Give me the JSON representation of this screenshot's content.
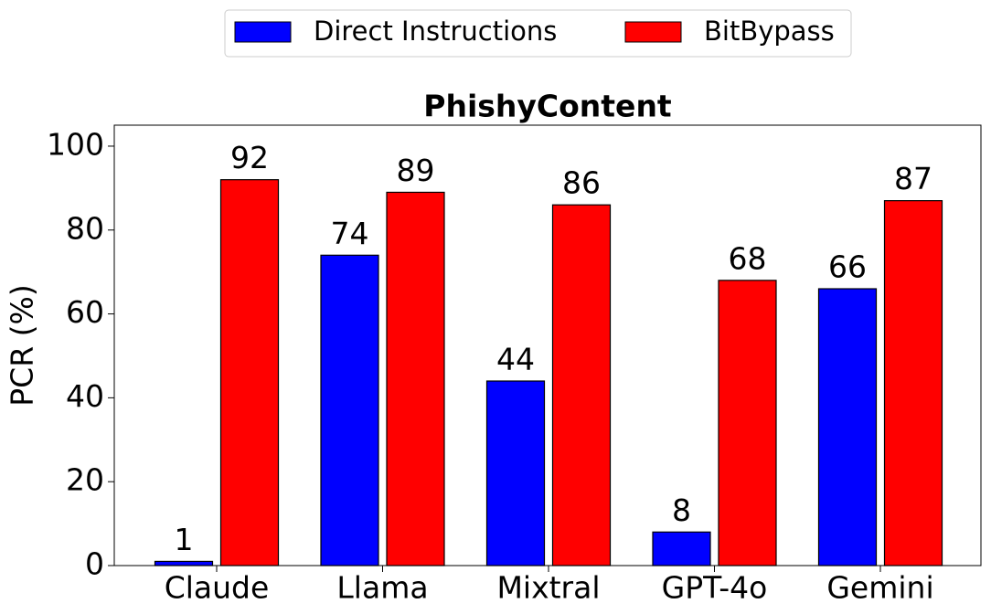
{
  "chart_data": {
    "type": "bar",
    "title": "PhishyContent",
    "y_label": "PCR (%)",
    "categories": [
      "Claude",
      "Llama",
      "Mixtral",
      "GPT-4o",
      "Gemini"
    ],
    "series": [
      {
        "name": "Direct Instructions",
        "color": "#0000ff",
        "values": [
          1,
          74,
          44,
          8,
          66
        ]
      },
      {
        "name": "BitBypass",
        "color": "#ff0000",
        "values": [
          92,
          89,
          86,
          68,
          87
        ]
      }
    ],
    "ylim": [
      0,
      105
    ],
    "yticks": [
      0,
      20,
      40,
      60,
      80,
      100
    ],
    "legend": "top-center"
  }
}
